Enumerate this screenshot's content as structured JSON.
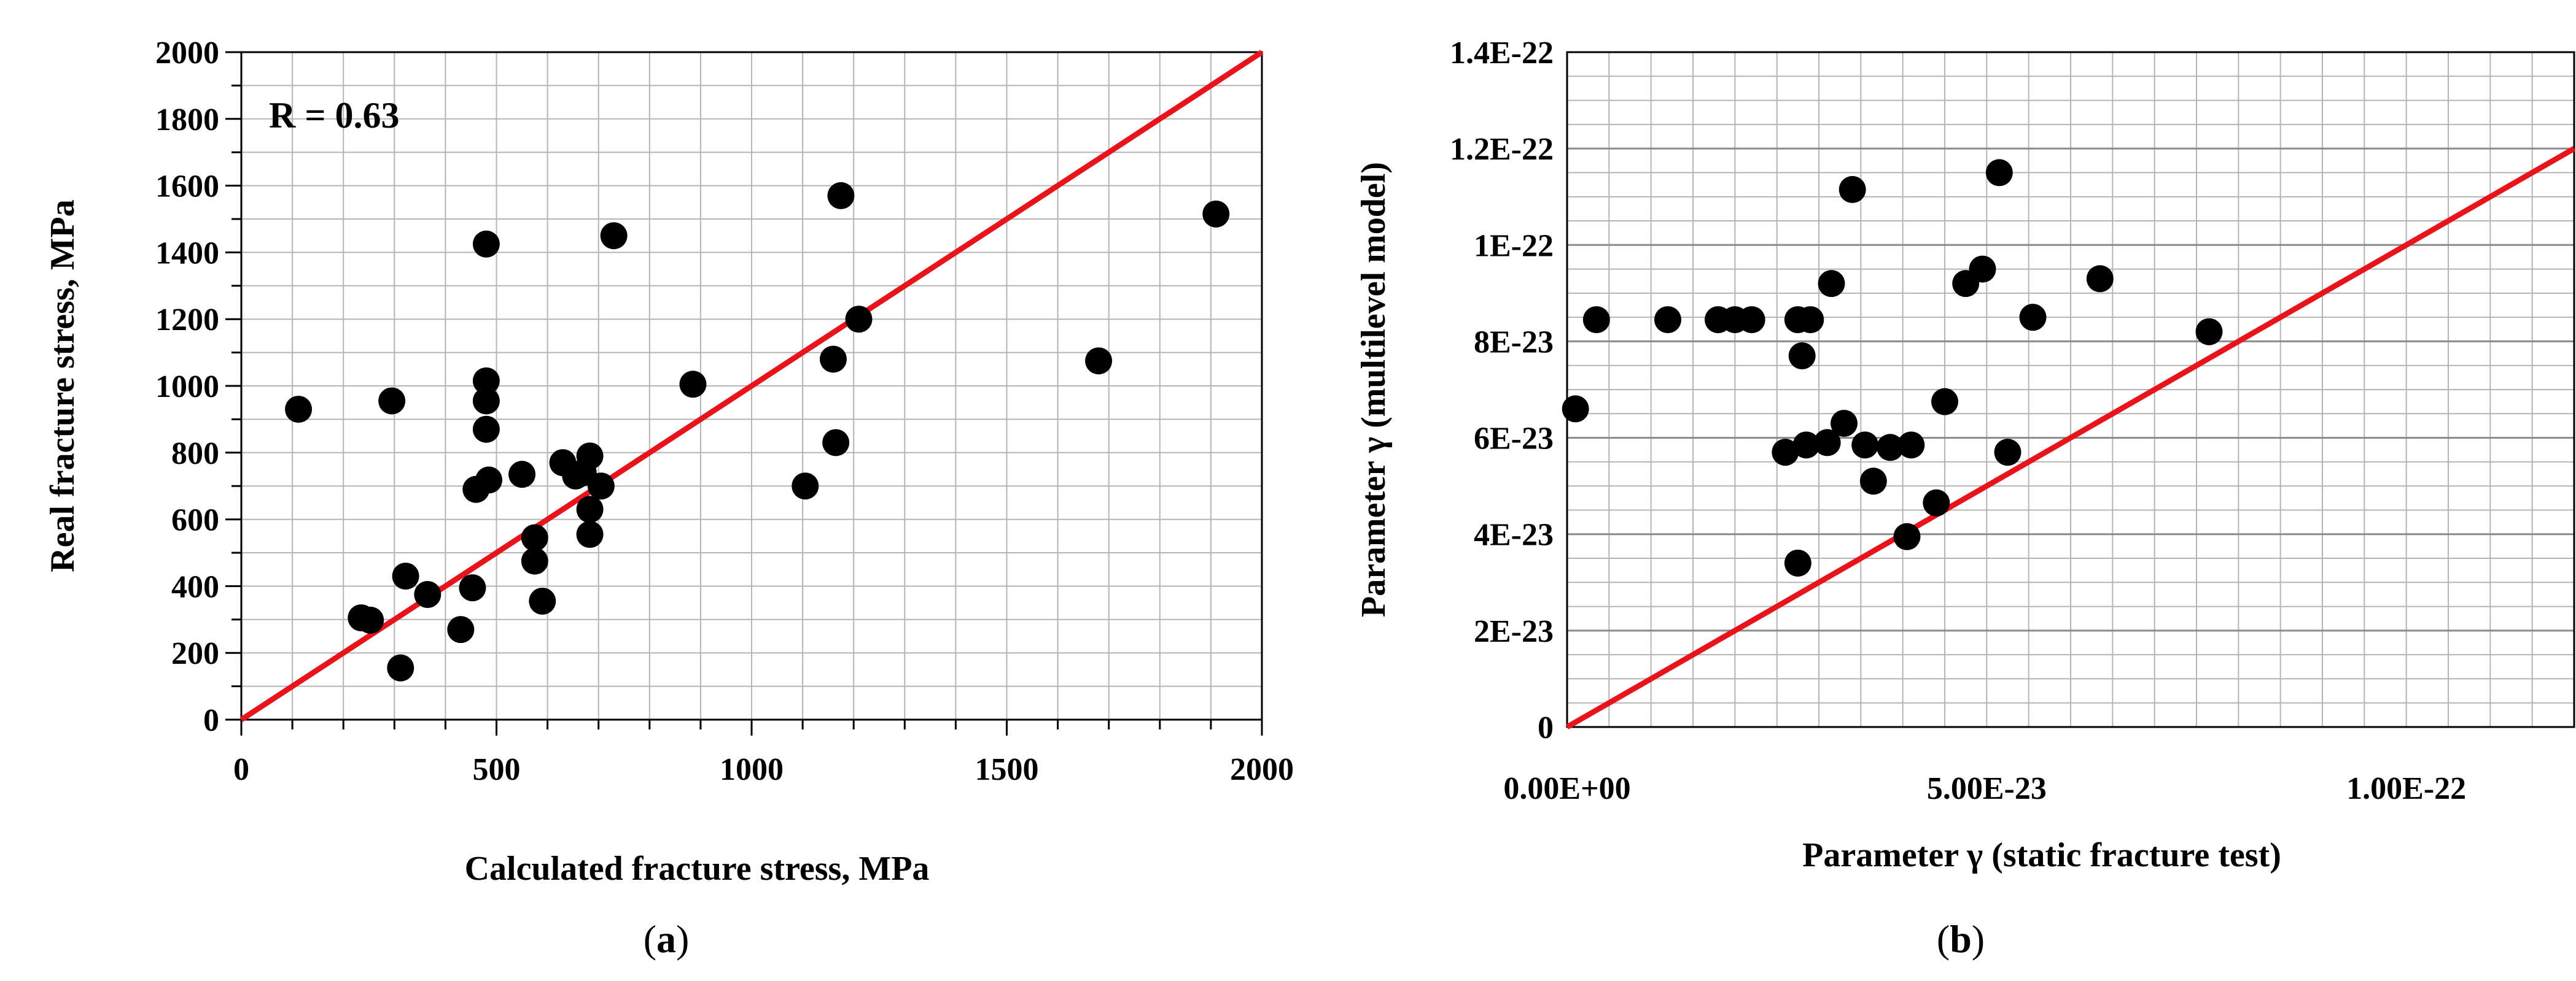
{
  "chart_data": [
    {
      "type": "scatter",
      "panel_label": "a",
      "xlabel": "Calculated fracture stress, MPa",
      "ylabel": "Real fracture stress, MPa",
      "annotation": "R = 0.63",
      "xlim": [
        0,
        2000
      ],
      "ylim": [
        0,
        2000
      ],
      "x_ticks": [
        0,
        500,
        1000,
        1500,
        2000
      ],
      "x_tick_labels": [
        "0",
        "500",
        "1000",
        "1500",
        "2000"
      ],
      "y_ticks": [
        0,
        200,
        400,
        600,
        800,
        1000,
        1200,
        1400,
        1600,
        1800,
        2000
      ],
      "y_tick_labels": [
        "0",
        "200",
        "400",
        "600",
        "800",
        "1000",
        "1200",
        "1400",
        "1600",
        "1800",
        "2000"
      ],
      "grid": true,
      "reference_line": {
        "x": [
          0,
          2000
        ],
        "y": [
          0,
          2000
        ],
        "color": "#e8141b"
      },
      "marker_color": "#000000",
      "points": [
        [
          112,
          930
        ],
        [
          235,
          305
        ],
        [
          253,
          298
        ],
        [
          295,
          955
        ],
        [
          312,
          155
        ],
        [
          322,
          430
        ],
        [
          365,
          375
        ],
        [
          430,
          270
        ],
        [
          453,
          395
        ],
        [
          460,
          690
        ],
        [
          480,
          1425
        ],
        [
          480,
          1015
        ],
        [
          480,
          955
        ],
        [
          480,
          870
        ],
        [
          485,
          718
        ],
        [
          550,
          735
        ],
        [
          575,
          545
        ],
        [
          575,
          475
        ],
        [
          590,
          355
        ],
        [
          630,
          770
        ],
        [
          655,
          730
        ],
        [
          670,
          740
        ],
        [
          683,
          790
        ],
        [
          683,
          630
        ],
        [
          683,
          555
        ],
        [
          705,
          700
        ],
        [
          730,
          1450
        ],
        [
          885,
          1005
        ],
        [
          1105,
          700
        ],
        [
          1160,
          1080
        ],
        [
          1165,
          830
        ],
        [
          1175,
          1570
        ],
        [
          1210,
          1200
        ],
        [
          1680,
          1075
        ],
        [
          1910,
          1515
        ]
      ]
    },
    {
      "type": "scatter",
      "panel_label": "b",
      "xlabel": "Parameter γ (static fracture test)",
      "ylabel": "Parameter γ (multilevel model)",
      "xlim": [
        0,
        1.2e-22
      ],
      "ylim": [
        0,
        1.4e-22
      ],
      "x_ticks": [
        0,
        5e-23,
        1e-22
      ],
      "x_tick_labels": [
        "0.00E+00",
        "5.00E-23",
        "1.00E-22"
      ],
      "y_ticks": [
        0,
        2e-23,
        4e-23,
        6e-23,
        8e-23,
        1e-22,
        1.2e-22,
        1.4e-22
      ],
      "y_tick_labels": [
        "0",
        "2E-23",
        "4E-23",
        "6E-23",
        "8E-23",
        "1E-22",
        "1.2E-22",
        "1.4E-22"
      ],
      "grid": true,
      "reference_line": {
        "x": [
          0,
          1.2e-22
        ],
        "y": [
          0,
          1.2e-22
        ],
        "color": "#e8141b"
      },
      "marker_color": "#000000",
      "points": [
        [
          1e-24,
          6.6e-23
        ],
        [
          3.5e-24,
          8.45e-23
        ],
        [
          1.2e-23,
          8.45e-23
        ],
        [
          1.8e-23,
          8.45e-23
        ],
        [
          2e-23,
          8.45e-23
        ],
        [
          2.2e-23,
          8.45e-23
        ],
        [
          2.6e-23,
          5.7e-23
        ],
        [
          2.75e-23,
          8.45e-23
        ],
        [
          2.75e-23,
          3.4e-23
        ],
        [
          2.8e-23,
          7.7e-23
        ],
        [
          2.85e-23,
          5.85e-23
        ],
        [
          2.9e-23,
          8.45e-23
        ],
        [
          3.1e-23,
          5.9e-23
        ],
        [
          3.15e-23,
          9.2e-23
        ],
        [
          3.3e-23,
          6.3e-23
        ],
        [
          3.4e-23,
          1.115e-22
        ],
        [
          3.55e-23,
          5.85e-23
        ],
        [
          3.65e-23,
          5.1e-23
        ],
        [
          3.85e-23,
          5.8e-23
        ],
        [
          4.05e-23,
          3.95e-23
        ],
        [
          4.1e-23,
          5.85e-23
        ],
        [
          4.4e-23,
          4.65e-23
        ],
        [
          4.5e-23,
          6.75e-23
        ],
        [
          4.75e-23,
          9.2e-23
        ],
        [
          4.95e-23,
          9.5e-23
        ],
        [
          5.15e-23,
          1.15e-22
        ],
        [
          5.25e-23,
          5.7e-23
        ],
        [
          5.55e-23,
          8.5e-23
        ],
        [
          6.35e-23,
          9.3e-23
        ],
        [
          7.65e-23,
          8.2e-23
        ]
      ]
    }
  ]
}
